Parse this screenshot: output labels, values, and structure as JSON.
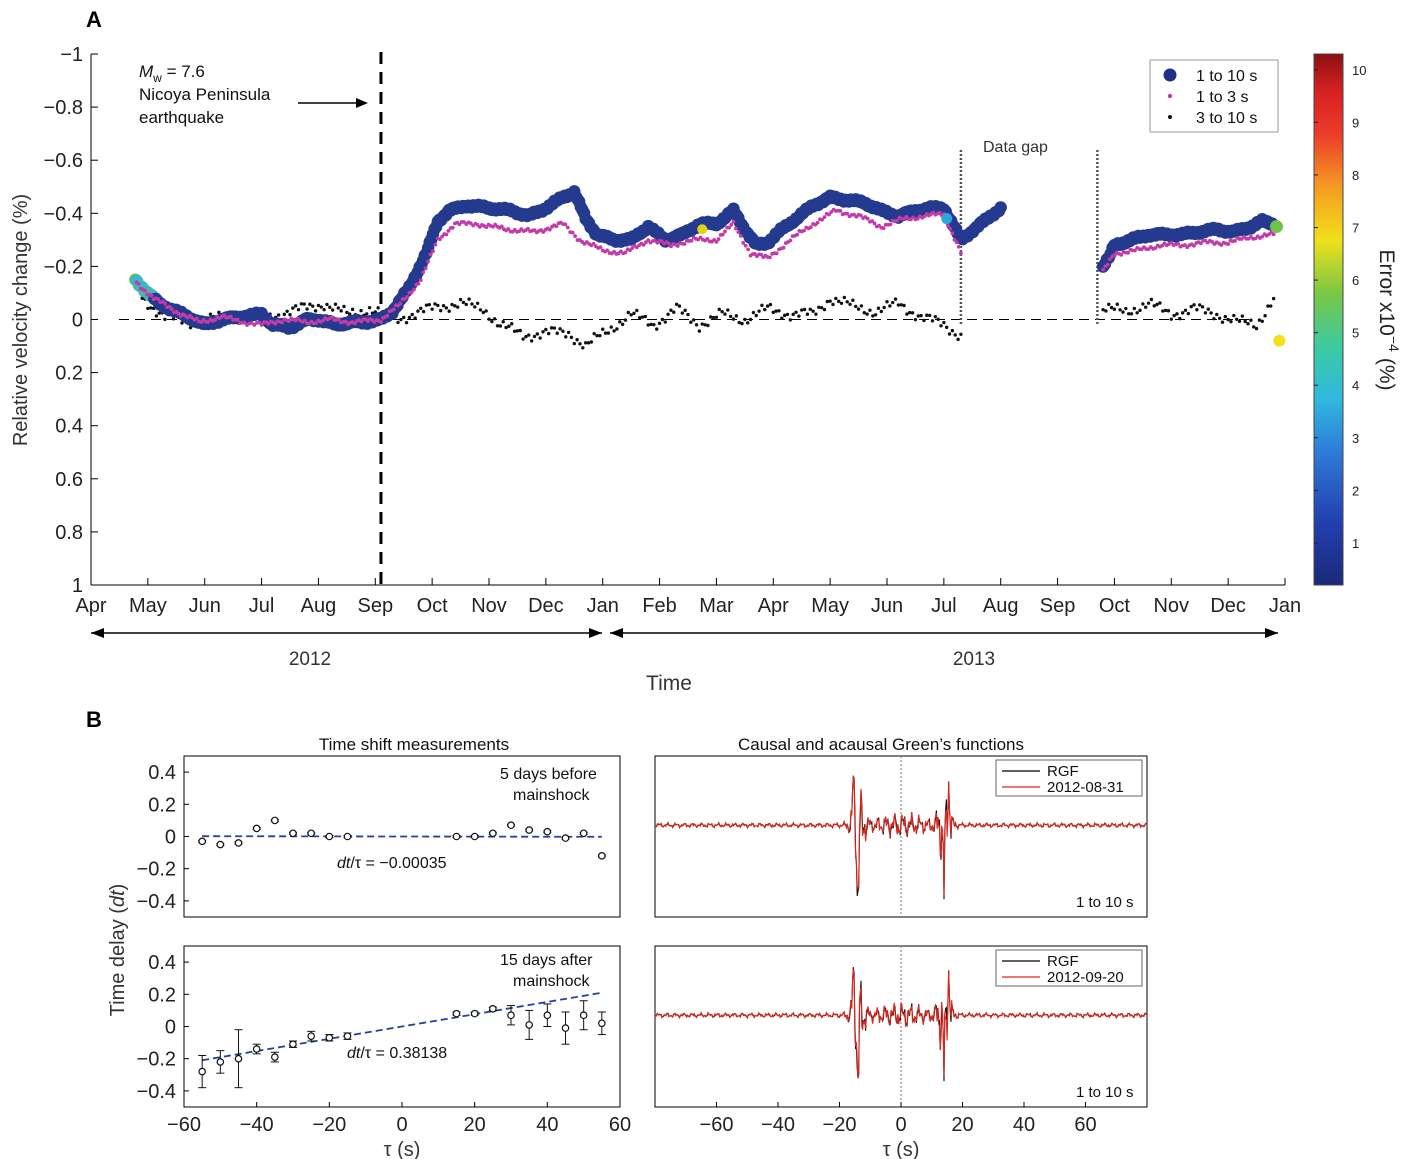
{
  "panel_a_label": "A",
  "panel_b_label": "B",
  "chart_data": [
    {
      "type": "scatter",
      "ylabel": "Relative velocity change (%)",
      "xlabel": "Time",
      "ylim": [
        1,
        -1
      ],
      "yticks": [
        -1,
        -0.8,
        -0.6,
        -0.4,
        -0.2,
        0,
        0.2,
        0.4,
        0.6,
        0.8,
        1
      ],
      "ytick_labels": [
        "−1",
        "−0.8",
        "−0.6",
        "−0.4",
        "−0.2",
        "0",
        "0.2",
        "0.4",
        "0.6",
        "0.8",
        "1"
      ],
      "xtick_labels": [
        "Apr",
        "May",
        "Jun",
        "Jul",
        "Aug",
        "Sep",
        "Oct",
        "Nov",
        "Dec",
        "Jan",
        "Feb",
        "Mar",
        "Apr",
        "May",
        "Jun",
        "Jul",
        "Aug",
        "Sep",
        "Oct",
        "Nov",
        "Dec",
        "Jan"
      ],
      "year_labels": [
        "2012",
        "2013"
      ],
      "event_month_index": 5.1,
      "data_gap_months": [
        15.3,
        17.7
      ],
      "annotation_mag": "M",
      "annotation_mag_sub": "w",
      "annotation_mag_val": " = 7.6",
      "annotation_line2": "Nicoya Peninsula",
      "annotation_line3": "earthquake",
      "data_gap_label": "Data gap",
      "legend": [
        "1 to 10 s",
        "1 to 3 s",
        "3 to 10 s"
      ],
      "colorbar": {
        "label_main": "Error x10",
        "label_exp": "−4",
        "label_unit": "(%)",
        "ticks": [
          "1",
          "2",
          "3",
          "4",
          "5",
          "6",
          "7",
          "8",
          "9",
          "10"
        ],
        "range": [
          0.2,
          10.3
        ]
      },
      "series": [
        {
          "name": "1 to 10 s",
          "points": [
            [
              0.78,
              -0.15
            ],
            [
              1.0,
              -0.1
            ],
            [
              1.2,
              -0.06
            ],
            [
              1.5,
              -0.03
            ],
            [
              1.8,
              0.0
            ],
            [
              2.0,
              0.02
            ],
            [
              2.3,
              0.0
            ],
            [
              2.6,
              -0.01
            ],
            [
              3.0,
              -0.02
            ],
            [
              3.2,
              0.02
            ],
            [
              3.5,
              0.03
            ],
            [
              3.8,
              0.0
            ],
            [
              4.0,
              0.0
            ],
            [
              4.3,
              0.02
            ],
            [
              4.6,
              0.01
            ],
            [
              4.8,
              0.01
            ],
            [
              5.1,
              0.0
            ],
            [
              5.3,
              -0.03
            ],
            [
              5.6,
              -0.12
            ],
            [
              5.9,
              -0.25
            ],
            [
              6.1,
              -0.37
            ],
            [
              6.3,
              -0.41
            ],
            [
              6.6,
              -0.43
            ],
            [
              7.0,
              -0.42
            ],
            [
              7.4,
              -0.41
            ],
            [
              7.7,
              -0.39
            ],
            [
              8.0,
              -0.42
            ],
            [
              8.3,
              -0.46
            ],
            [
              8.5,
              -0.48
            ],
            [
              8.7,
              -0.38
            ],
            [
              8.9,
              -0.32
            ],
            [
              9.2,
              -0.3
            ],
            [
              9.5,
              -0.3
            ],
            [
              9.8,
              -0.35
            ],
            [
              10.1,
              -0.3
            ],
            [
              10.4,
              -0.32
            ],
            [
              10.7,
              -0.36
            ],
            [
              11.0,
              -0.36
            ],
            [
              11.3,
              -0.41
            ],
            [
              11.5,
              -0.34
            ],
            [
              11.7,
              -0.28
            ],
            [
              11.9,
              -0.29
            ],
            [
              12.1,
              -0.33
            ],
            [
              12.4,
              -0.38
            ],
            [
              12.7,
              -0.43
            ],
            [
              13.0,
              -0.46
            ],
            [
              13.3,
              -0.45
            ],
            [
              13.6,
              -0.44
            ],
            [
              13.9,
              -0.41
            ],
            [
              14.2,
              -0.39
            ],
            [
              14.5,
              -0.41
            ],
            [
              14.8,
              -0.42
            ],
            [
              15.0,
              -0.42
            ],
            [
              15.1,
              -0.38
            ],
            [
              15.3,
              -0.3
            ],
            [
              16.0,
              -0.42
            ],
            [
              17.8,
              -0.2
            ],
            [
              17.9,
              -0.23
            ],
            [
              18.0,
              -0.28
            ],
            [
              18.3,
              -0.3
            ],
            [
              18.6,
              -0.32
            ],
            [
              18.9,
              -0.32
            ],
            [
              19.2,
              -0.32
            ],
            [
              19.5,
              -0.33
            ],
            [
              19.8,
              -0.34
            ],
            [
              20.1,
              -0.33
            ],
            [
              20.4,
              -0.35
            ],
            [
              20.6,
              -0.37
            ],
            [
              20.8,
              -0.36
            ]
          ]
        },
        {
          "name": "1 to 3 s",
          "points": [
            [
              0.8,
              -0.14
            ],
            [
              1.1,
              -0.08
            ],
            [
              1.5,
              -0.03
            ],
            [
              1.9,
              0.01
            ],
            [
              2.3,
              -0.01
            ],
            [
              2.7,
              0.01
            ],
            [
              3.0,
              0.02
            ],
            [
              3.4,
              0.0
            ],
            [
              3.8,
              0.01
            ],
            [
              4.2,
              0.0
            ],
            [
              4.6,
              0.01
            ],
            [
              5.1,
              0.0
            ],
            [
              5.4,
              -0.05
            ],
            [
              5.8,
              -0.15
            ],
            [
              6.1,
              -0.3
            ],
            [
              6.4,
              -0.36
            ],
            [
              6.8,
              -0.36
            ],
            [
              7.3,
              -0.34
            ],
            [
              7.8,
              -0.33
            ],
            [
              8.3,
              -0.36
            ],
            [
              8.6,
              -0.3
            ],
            [
              9.0,
              -0.26
            ],
            [
              9.4,
              -0.25
            ],
            [
              9.8,
              -0.3
            ],
            [
              10.2,
              -0.28
            ],
            [
              10.6,
              -0.3
            ],
            [
              11.0,
              -0.3
            ],
            [
              11.3,
              -0.36
            ],
            [
              11.6,
              -0.25
            ],
            [
              11.9,
              -0.23
            ],
            [
              12.3,
              -0.3
            ],
            [
              12.7,
              -0.36
            ],
            [
              13.1,
              -0.41
            ],
            [
              13.5,
              -0.39
            ],
            [
              13.9,
              -0.35
            ],
            [
              14.3,
              -0.38
            ],
            [
              14.7,
              -0.39
            ],
            [
              15.0,
              -0.4
            ],
            [
              15.3,
              -0.25
            ],
            [
              17.8,
              -0.18
            ],
            [
              18.0,
              -0.25
            ],
            [
              18.4,
              -0.26
            ],
            [
              18.8,
              -0.28
            ],
            [
              19.2,
              -0.28
            ],
            [
              19.6,
              -0.29
            ],
            [
              20.0,
              -0.29
            ],
            [
              20.4,
              -0.31
            ],
            [
              20.8,
              -0.32
            ]
          ]
        },
        {
          "name": "3 to 10 s",
          "points": [
            [
              0.9,
              -0.08
            ],
            [
              1.3,
              -0.01
            ],
            [
              1.7,
              0.01
            ],
            [
              2.1,
              0.0
            ],
            [
              2.5,
              -0.01
            ],
            [
              2.9,
              0.0
            ],
            [
              3.3,
              -0.02
            ],
            [
              3.7,
              -0.04
            ],
            [
              4.1,
              -0.06
            ],
            [
              4.5,
              -0.02
            ],
            [
              4.9,
              -0.04
            ],
            [
              5.3,
              0.0
            ],
            [
              5.7,
              -0.02
            ],
            [
              6.1,
              -0.05
            ],
            [
              6.5,
              -0.06
            ],
            [
              6.9,
              -0.04
            ],
            [
              7.2,
              0.02
            ],
            [
              7.6,
              0.06
            ],
            [
              8.0,
              0.05
            ],
            [
              8.4,
              0.05
            ],
            [
              8.7,
              0.1
            ],
            [
              9.1,
              0.04
            ],
            [
              9.5,
              -0.02
            ],
            [
              9.9,
              0.02
            ],
            [
              10.3,
              -0.04
            ],
            [
              10.7,
              0.02
            ],
            [
              11.1,
              -0.02
            ],
            [
              11.5,
              0.0
            ],
            [
              11.9,
              -0.04
            ],
            [
              12.3,
              -0.02
            ],
            [
              12.7,
              -0.02
            ],
            [
              13.0,
              -0.08
            ],
            [
              13.4,
              -0.05
            ],
            [
              13.8,
              -0.03
            ],
            [
              14.2,
              -0.06
            ],
            [
              14.6,
              -0.01
            ],
            [
              15.0,
              0.02
            ],
            [
              15.3,
              0.06
            ],
            [
              17.8,
              -0.04
            ],
            [
              18.2,
              -0.03
            ],
            [
              18.6,
              -0.06
            ],
            [
              19.0,
              -0.02
            ],
            [
              19.4,
              -0.04
            ],
            [
              19.8,
              -0.02
            ],
            [
              20.2,
              0.01
            ],
            [
              20.5,
              0.02
            ],
            [
              20.8,
              -0.08
            ]
          ]
        }
      ]
    },
    {
      "type": "scatter",
      "title": "Time shift measurements",
      "annotation": "5 days before mainshock",
      "annotation_line1": "5 days before",
      "annotation_line2": "mainshock",
      "fit_label_prefix": "dt",
      "fit_label_suffix": "/τ = −0.00035",
      "ylim": [
        -0.5,
        0.5
      ],
      "yticks": [
        -0.4,
        -0.2,
        0,
        0.2,
        0.4
      ],
      "ytick_labels": [
        "−0.4",
        "−0.2",
        "0",
        "0.2",
        "0.4"
      ],
      "points": [
        [
          -55,
          -0.03
        ],
        [
          -50,
          -0.05
        ],
        [
          -45,
          -0.04
        ],
        [
          -40,
          0.05
        ],
        [
          -35,
          0.1
        ],
        [
          -30,
          0.02
        ],
        [
          -25,
          0.02
        ],
        [
          -20,
          0.0
        ],
        [
          -15,
          0.0
        ],
        [
          15,
          0.0
        ],
        [
          20,
          0.0
        ],
        [
          25,
          0.02
        ],
        [
          30,
          0.07
        ],
        [
          35,
          0.04
        ],
        [
          40,
          0.03
        ],
        [
          45,
          -0.01
        ],
        [
          50,
          0.02
        ],
        [
          55,
          -0.12
        ]
      ],
      "fit_slope": -0.00035
    },
    {
      "type": "scatter",
      "annotation_line1": "15 days after",
      "annotation_line2": "mainshock",
      "fit_label_prefix": "dt",
      "fit_label_suffix": "/τ = 0.38138",
      "ylabel": "Time delay (",
      "ylabel_italic": "dt",
      "ylabel_end": ")",
      "xlabel": "τ (s)",
      "xlim": [
        -60,
        60
      ],
      "xticks": [
        -60,
        -40,
        -20,
        0,
        20,
        40,
        60
      ],
      "xtick_labels": [
        "−60",
        "−40",
        "−20",
        "0",
        "20",
        "40",
        "60"
      ],
      "ylim": [
        -0.5,
        0.5
      ],
      "yticks": [
        -0.4,
        -0.2,
        0,
        0.2,
        0.4
      ],
      "ytick_labels": [
        "−0.4",
        "−0.2",
        "0",
        "0.2",
        "0.4"
      ],
      "points": [
        [
          -55,
          -0.28,
          0.1
        ],
        [
          -50,
          -0.22,
          0.07
        ],
        [
          -45,
          -0.2,
          0.18
        ],
        [
          -40,
          -0.14,
          0.03
        ],
        [
          -35,
          -0.19,
          0.03
        ],
        [
          -30,
          -0.11,
          0.02
        ],
        [
          -25,
          -0.06,
          0.03
        ],
        [
          -20,
          -0.07,
          0.02
        ],
        [
          -15,
          -0.06,
          0.02
        ],
        [
          15,
          0.08,
          0.01
        ],
        [
          20,
          0.08,
          0.01
        ],
        [
          25,
          0.11,
          0.01
        ],
        [
          30,
          0.07,
          0.06
        ],
        [
          35,
          0.01,
          0.09
        ],
        [
          40,
          0.07,
          0.07
        ],
        [
          45,
          -0.01,
          0.1
        ],
        [
          50,
          0.07,
          0.09
        ],
        [
          55,
          0.02,
          0.07
        ]
      ],
      "fit_slope": 0.0038138,
      "fit_intercept": 0.0
    },
    {
      "type": "line",
      "title": "Causal and acausal Green’s functions",
      "legend": [
        "RGF",
        "2012-08-31"
      ],
      "band_label": "1 to 10 s"
    },
    {
      "type": "line",
      "legend": [
        "RGF",
        "2012-09-20"
      ],
      "band_label": "1 to 10 s",
      "xlabel": "τ (s)",
      "xtick_labels": [
        "−60",
        "−40",
        "−20",
        "0",
        "20",
        "40",
        "60"
      ]
    }
  ]
}
